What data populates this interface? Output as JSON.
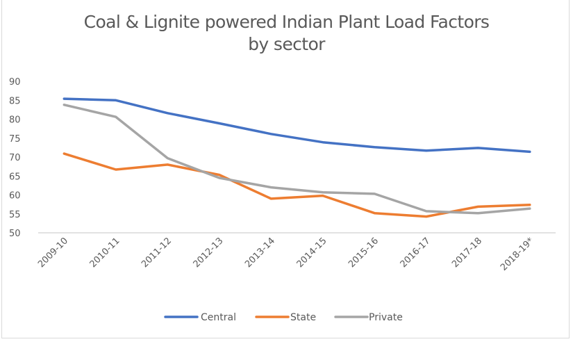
{
  "chart_data": {
    "type": "line",
    "title": "Coal & Lignite powered Indian Plant Load Factors by sector",
    "title_lines": [
      "Coal & Lignite powered Indian Plant Load Factors",
      "by sector"
    ],
    "xlabel": "",
    "ylabel": "",
    "categories": [
      "2009-10",
      "2010-11",
      "2011-12",
      "2012-13",
      "2013-14",
      "2014-15",
      "2015-16",
      "2016-17",
      "2017-18",
      "2018-19*"
    ],
    "ylim": [
      50,
      90
    ],
    "yticks": [
      50,
      55,
      60,
      65,
      70,
      75,
      80,
      85,
      90
    ],
    "grid": false,
    "legend_position": "bottom",
    "series": [
      {
        "name": "Central",
        "color": "#4472c4",
        "values": [
          85.4,
          85.0,
          81.6,
          78.9,
          76.1,
          73.9,
          72.6,
          71.7,
          72.4,
          71.4
        ]
      },
      {
        "name": "State",
        "color": "#ed7d31",
        "values": [
          70.9,
          66.7,
          68.0,
          65.3,
          59.0,
          59.8,
          55.2,
          54.3,
          56.9,
          57.4
        ]
      },
      {
        "name": "Private",
        "color": "#a5a5a5",
        "values": [
          83.8,
          80.6,
          69.7,
          64.5,
          62.0,
          60.7,
          60.3,
          55.7,
          55.2,
          56.4
        ]
      }
    ]
  }
}
